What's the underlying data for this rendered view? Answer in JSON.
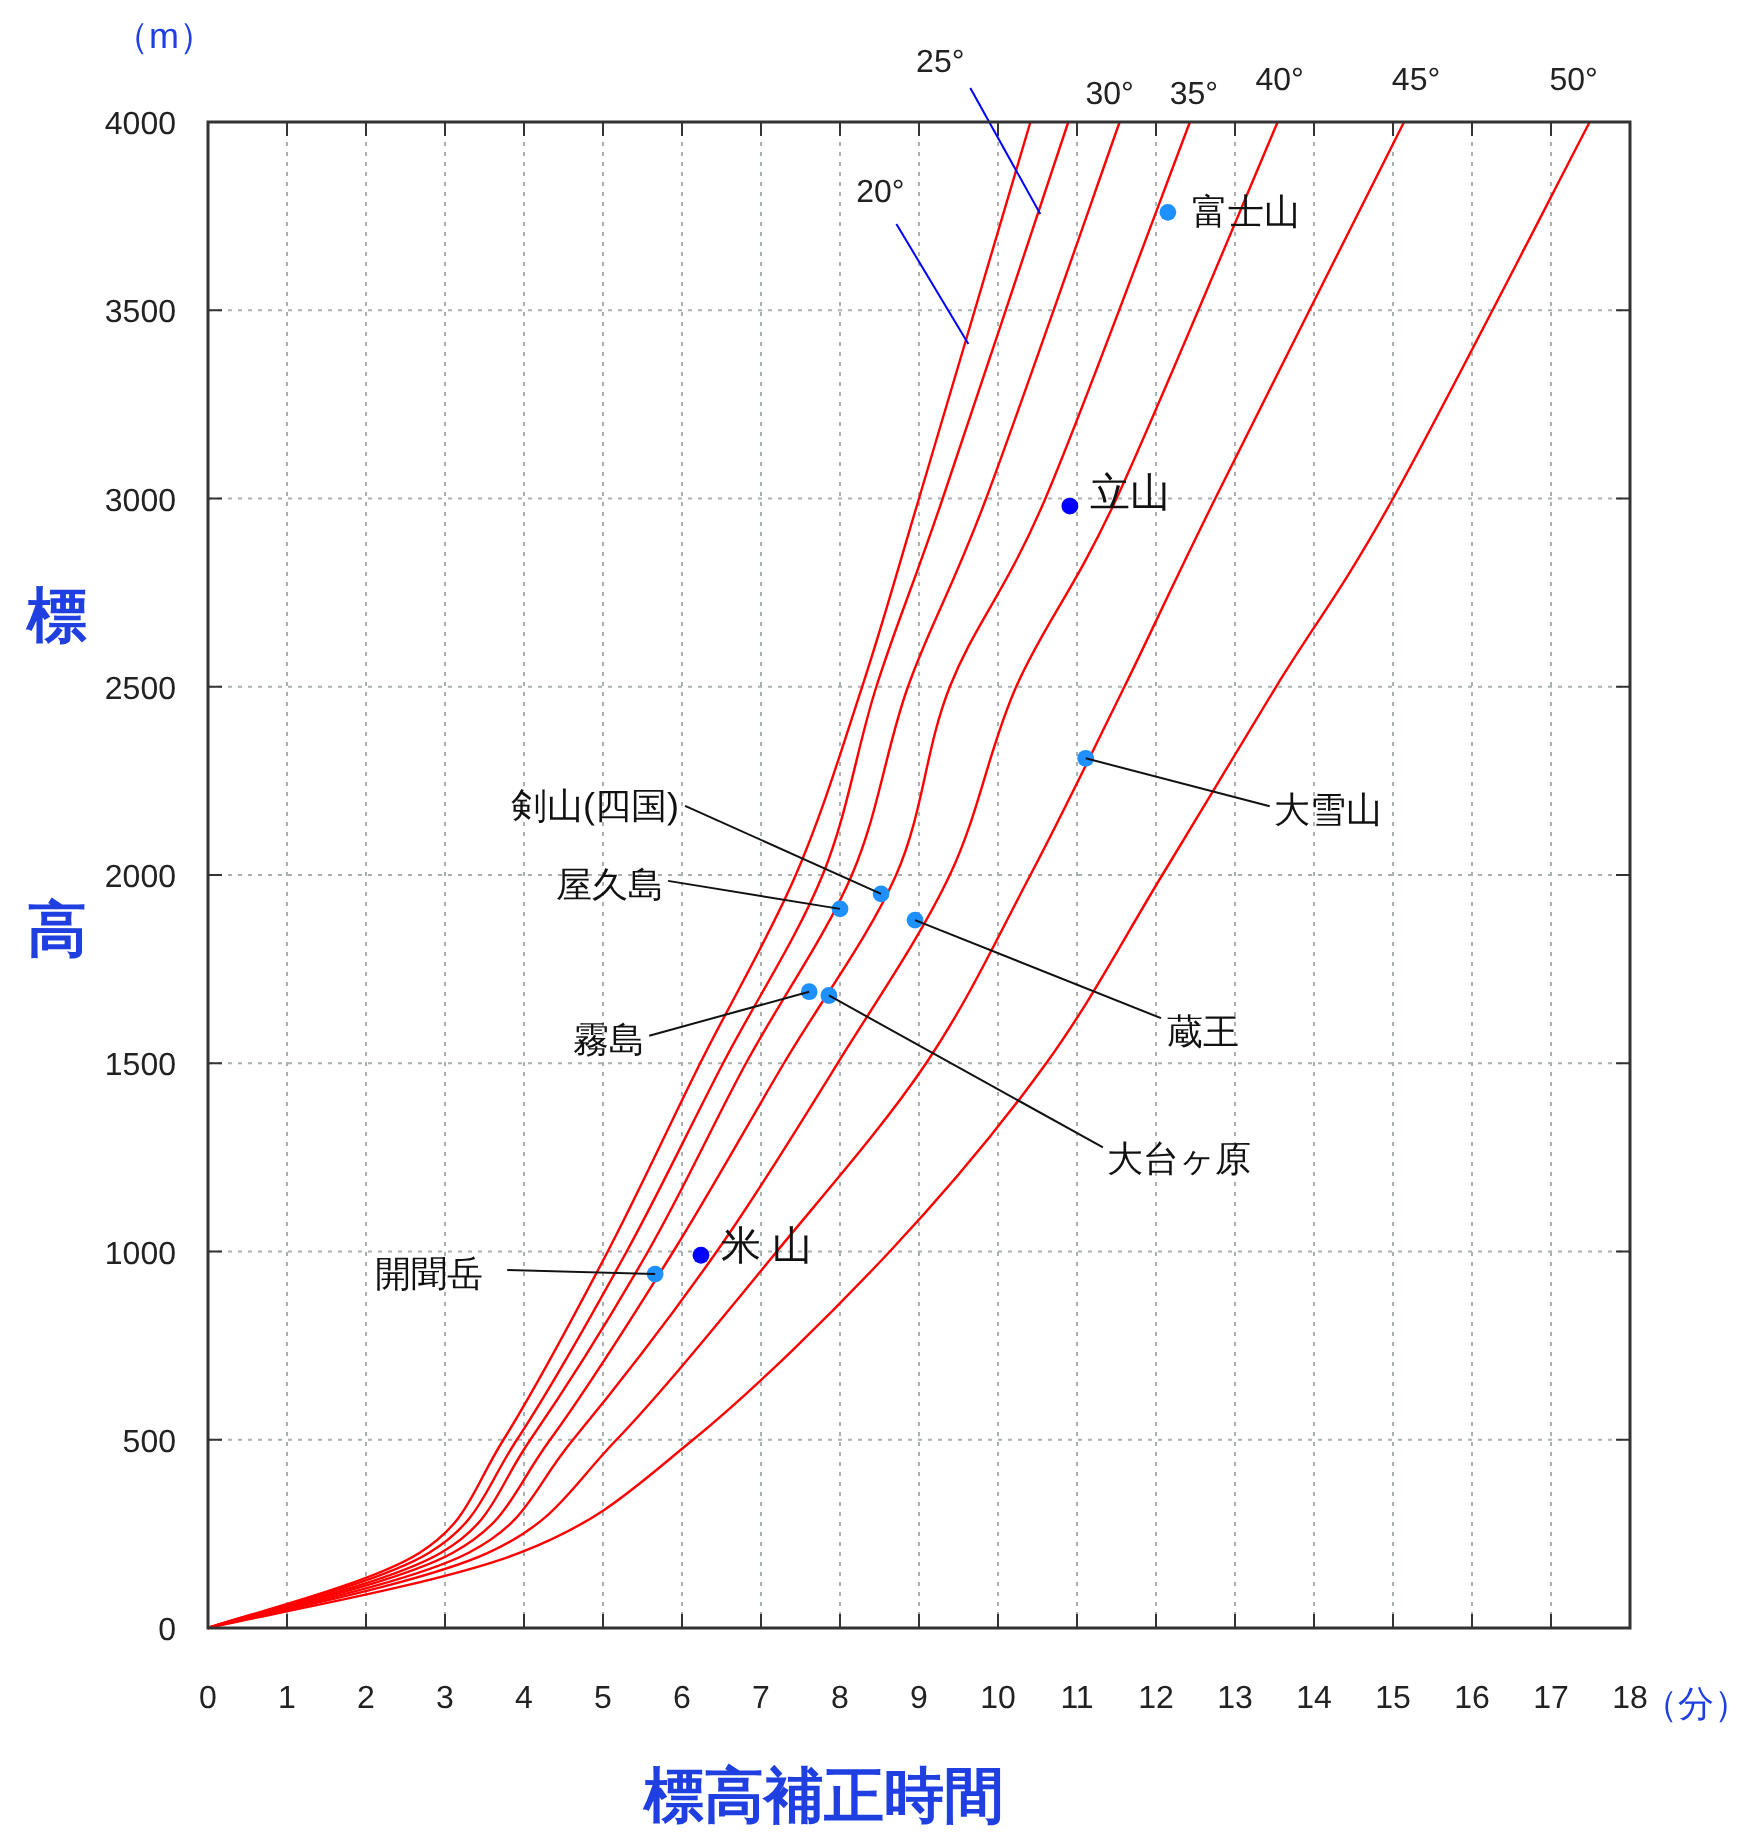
{
  "chart_data": {
    "type": "line",
    "xlabel": "標高補正時間",
    "ylabel": "標高",
    "xlim": [
      0,
      18
    ],
    "ylim": [
      0,
      4000
    ],
    "xticks": [
      0,
      1,
      2,
      3,
      4,
      5,
      6,
      7,
      8,
      9,
      10,
      11,
      12,
      13,
      14,
      15,
      16,
      17,
      18
    ],
    "yticks": [
      0,
      500,
      1000,
      1500,
      2000,
      2500,
      3000,
      3500,
      4000
    ],
    "grid": true,
    "series": [
      {
        "name": "20°",
        "color": "#ff0000",
        "x": [
          0,
          2.68,
          3.74,
          5.06,
          6.23,
          7.44,
          8.28,
          9.0,
          10.41
        ],
        "values": [
          0,
          200,
          500,
          1000,
          1500,
          2000,
          2500,
          3000,
          4000
        ]
      },
      {
        "name": "25°",
        "color": "#ff0000",
        "x": [
          0,
          2.8,
          3.91,
          5.3,
          6.52,
          7.78,
          8.46,
          9.3,
          10.89
        ],
        "values": [
          0,
          200,
          500,
          1000,
          1500,
          2000,
          2500,
          3000,
          4000
        ]
      },
      {
        "name": "30°",
        "color": "#ff0000",
        "x": [
          0,
          2.95,
          4.08,
          5.57,
          6.81,
          8.15,
          8.86,
          9.85,
          11.54
        ],
        "values": [
          0,
          200,
          500,
          1000,
          1500,
          2000,
          2500,
          3000,
          4000
        ]
      },
      {
        "name": "35°",
        "color": "#ff0000",
        "x": [
          0,
          3.1,
          4.33,
          5.89,
          7.29,
          8.71,
          9.39,
          10.6,
          12.43
        ],
        "values": [
          0,
          200,
          500,
          1000,
          1500,
          2000,
          2500,
          3000,
          4000
        ]
      },
      {
        "name": "40°",
        "color": "#ff0000",
        "x": [
          0,
          3.3,
          4.62,
          6.44,
          7.97,
          9.39,
          10.23,
          11.5,
          13.54
        ],
        "values": [
          0,
          200,
          500,
          1000,
          1500,
          2000,
          2500,
          3000,
          4000
        ]
      },
      {
        "name": "45°",
        "color": "#ff0000",
        "x": [
          0,
          3.55,
          5.17,
          7.2,
          9.09,
          10.41,
          11.6,
          12.75,
          15.14
        ],
        "values": [
          0,
          200,
          500,
          1000,
          1500,
          2000,
          2500,
          3000,
          4000
        ]
      },
      {
        "name": "50°",
        "color": "#ff0000",
        "x": [
          0,
          3.95,
          6.14,
          8.63,
          10.61,
          12.08,
          13.52,
          15.0,
          17.49
        ],
        "values": [
          0,
          200,
          500,
          1000,
          1500,
          2000,
          2500,
          3000,
          4000
        ]
      },
      {
        "type": "scatter",
        "marker": "circle",
        "x": [
          12.15,
          10.91,
          11.11,
          8.52,
          8.0,
          8.95,
          7.61,
          7.86,
          5.66,
          6.24
        ],
        "values": [
          3760,
          2980,
          2310,
          1950,
          1910,
          1880,
          1690,
          1680,
          940,
          990
        ],
        "colors": [
          "#1e90ff",
          "#0000ff",
          "#1e90ff",
          "#1e90ff",
          "#1e90ff",
          "#1e90ff",
          "#1e90ff",
          "#1e90ff",
          "#1e90ff",
          "#0000ff"
        ]
      }
    ],
    "annotations": [
      {
        "text": "富士山",
        "x": 12.15,
        "y": 3760
      },
      {
        "text": "立山",
        "x": 10.91,
        "y": 2980
      },
      {
        "text": "大雪山",
        "x": 11.11,
        "y": 2310
      },
      {
        "text": "剣山(四国)",
        "x": 8.52,
        "y": 1950
      },
      {
        "text": "屋久島",
        "x": 8.0,
        "y": 1910
      },
      {
        "text": "蔵王",
        "x": 8.95,
        "y": 1880
      },
      {
        "text": "霧島",
        "x": 7.61,
        "y": 1690
      },
      {
        "text": "大台ヶ原",
        "x": 7.86,
        "y": 1680
      },
      {
        "text": "開聞岳",
        "x": 5.66,
        "y": 940
      },
      {
        "text": "米 山",
        "x": 6.24,
        "y": 990
      },
      "（m）",
      "（分）"
    ]
  }
}
